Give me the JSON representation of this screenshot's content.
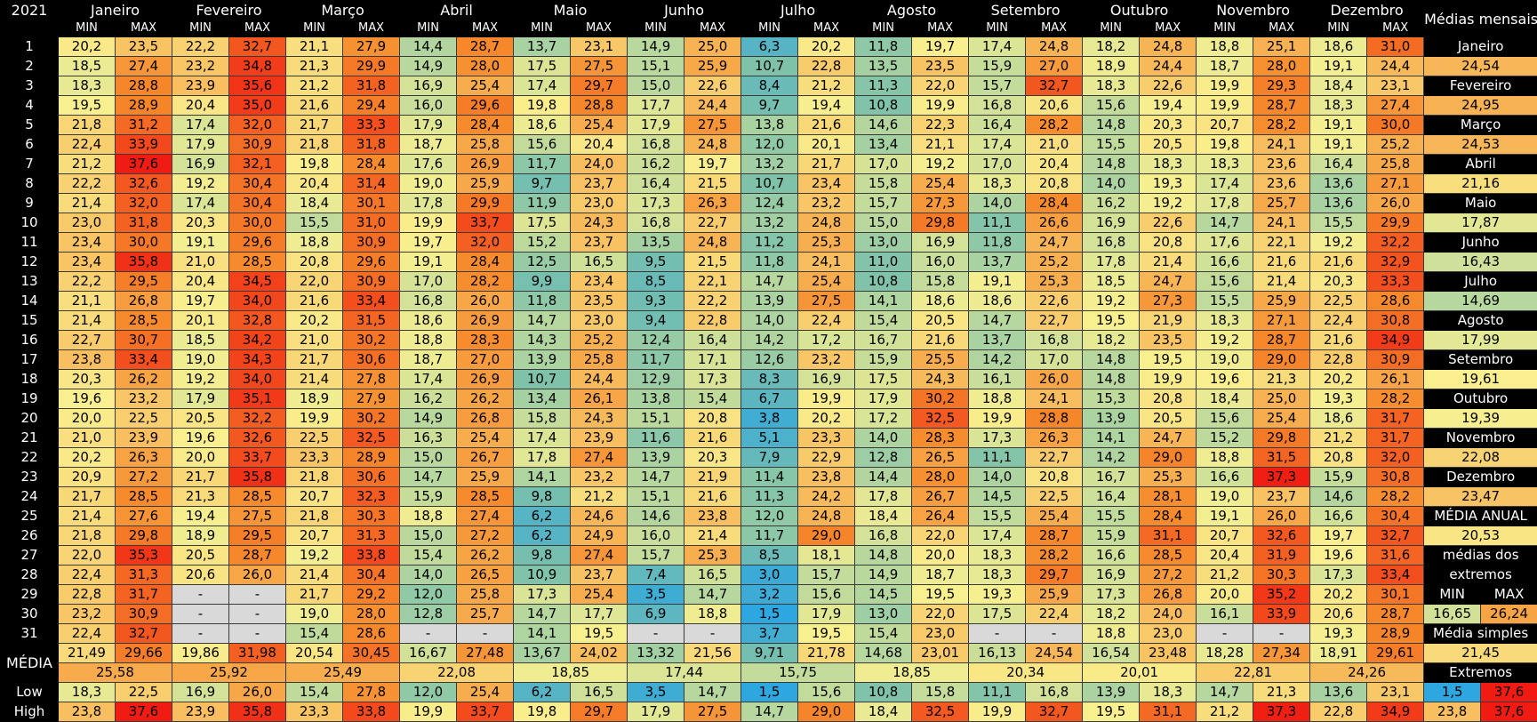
{
  "year": "2021",
  "months": [
    "Janeiro",
    "Fevereiro",
    "Março",
    "Abril",
    "Maio",
    "Junho",
    "Julho",
    "Agosto",
    "Setembro",
    "Outubro",
    "Novembro",
    "Dezembro"
  ],
  "min_label": "MIN",
  "max_label": "MAX",
  "days": [
    [
      20.2,
      23.5,
      22.2,
      32.7,
      21.1,
      27.9,
      14.4,
      28.7,
      13.7,
      23.1,
      14.9,
      25.0,
      6.3,
      20.2,
      11.8,
      19.7,
      17.4,
      24.8,
      18.2,
      24.8,
      18.8,
      25.1,
      18.6,
      31.0
    ],
    [
      18.5,
      27.4,
      23.2,
      34.8,
      21.3,
      29.9,
      14.9,
      28.0,
      17.5,
      27.5,
      15.1,
      25.9,
      10.7,
      22.8,
      13.5,
      23.5,
      15.9,
      27.0,
      18.9,
      24.4,
      18.7,
      28.0,
      19.1,
      24.4
    ],
    [
      18.3,
      28.8,
      23.9,
      35.6,
      21.2,
      31.8,
      16.9,
      25.4,
      17.4,
      29.7,
      15.0,
      22.6,
      8.4,
      21.2,
      11.3,
      22.0,
      15.7,
      32.7,
      18.3,
      22.6,
      19.9,
      29.3,
      18.4,
      23.1
    ],
    [
      19.5,
      28.9,
      20.4,
      35.0,
      21.6,
      29.4,
      16.0,
      29.6,
      19.8,
      28.8,
      17.7,
      24.4,
      9.7,
      19.4,
      10.8,
      19.9,
      16.8,
      20.6,
      15.6,
      19.4,
      19.9,
      28.7,
      18.3,
      27.4
    ],
    [
      21.8,
      31.2,
      17.4,
      32.0,
      21.7,
      33.3,
      17.9,
      28.4,
      18.6,
      25.4,
      17.9,
      27.5,
      13.8,
      21.6,
      14.6,
      22.3,
      16.4,
      28.2,
      14.8,
      20.3,
      20.7,
      28.2,
      19.1,
      30.0
    ],
    [
      22.4,
      33.9,
      17.9,
      30.9,
      21.8,
      31.8,
      18.7,
      25.8,
      15.6,
      20.4,
      16.8,
      24.8,
      12.0,
      20.1,
      13.4,
      21.1,
      17.4,
      21.0,
      15.5,
      20.5,
      19.8,
      24.1,
      19.1,
      25.2
    ],
    [
      21.2,
      37.6,
      16.9,
      32.1,
      19.8,
      28.4,
      17.6,
      26.9,
      11.7,
      24.0,
      16.2,
      19.7,
      13.2,
      21.7,
      17.0,
      19.2,
      17.0,
      20.4,
      14.8,
      18.3,
      18.3,
      23.6,
      16.4,
      25.8
    ],
    [
      22.2,
      32.6,
      19.2,
      30.4,
      20.4,
      31.4,
      19.0,
      25.9,
      9.7,
      23.7,
      16.4,
      21.5,
      10.7,
      23.4,
      15.8,
      25.4,
      18.3,
      20.8,
      14.0,
      19.3,
      17.4,
      23.6,
      13.6,
      27.1
    ],
    [
      21.4,
      32.0,
      17.4,
      30.4,
      18.4,
      30.1,
      17.8,
      29.9,
      11.9,
      23.0,
      17.3,
      26.3,
      12.4,
      23.2,
      15.7,
      27.3,
      14.0,
      28.4,
      16.2,
      19.2,
      17.8,
      25.7,
      13.6,
      26.0
    ],
    [
      23.0,
      31.8,
      20.3,
      30.0,
      15.5,
      31.0,
      19.9,
      33.7,
      17.5,
      24.3,
      16.8,
      22.7,
      13.2,
      24.8,
      15.0,
      29.8,
      11.1,
      26.6,
      16.9,
      22.6,
      14.7,
      24.1,
      15.5,
      29.9
    ],
    [
      23.4,
      30.0,
      19.1,
      29.6,
      18.8,
      30.9,
      19.7,
      32.0,
      15.2,
      23.7,
      13.5,
      24.8,
      11.2,
      25.3,
      13.0,
      16.9,
      11.8,
      24.7,
      16.8,
      20.8,
      17.6,
      22.1,
      19.2,
      32.2
    ],
    [
      23.4,
      35.8,
      21.0,
      28.5,
      20.8,
      29.6,
      19.1,
      28.4,
      12.5,
      16.5,
      9.5,
      21.5,
      11.8,
      24.1,
      11.0,
      16.0,
      13.7,
      25.2,
      17.8,
      21.4,
      16.6,
      21.6,
      21.6,
      32.9
    ],
    [
      22.2,
      29.5,
      20.4,
      34.5,
      22.0,
      30.9,
      17.0,
      28.2,
      9.9,
      23.4,
      8.5,
      22.1,
      14.7,
      25.4,
      10.8,
      15.8,
      19.1,
      25.3,
      18.5,
      24.7,
      15.6,
      21.4,
      20.3,
      33.3
    ],
    [
      21.1,
      26.8,
      19.7,
      34.0,
      21.6,
      33.4,
      16.8,
      26.0,
      11.8,
      23.5,
      9.3,
      22.2,
      13.9,
      27.5,
      14.1,
      18.6,
      18.6,
      22.6,
      19.2,
      27.3,
      15.5,
      25.9,
      22.5,
      28.6
    ],
    [
      21.4,
      28.5,
      20.1,
      32.8,
      20.2,
      31.5,
      18.6,
      26.9,
      14.7,
      23.0,
      9.4,
      22.8,
      14.0,
      22.4,
      15.4,
      20.5,
      14.7,
      22.7,
      19.5,
      21.9,
      18.3,
      27.1,
      22.4,
      30.8
    ],
    [
      22.7,
      30.7,
      18.5,
      34.2,
      21.0,
      30.2,
      18.8,
      28.3,
      14.3,
      25.2,
      12.4,
      16.4,
      14.2,
      17.2,
      16.7,
      21.6,
      13.7,
      16.8,
      18.2,
      23.5,
      19.2,
      28.7,
      21.6,
      34.9
    ],
    [
      23.8,
      33.4,
      19.0,
      34.3,
      21.7,
      30.6,
      18.7,
      27.0,
      13.9,
      25.8,
      11.7,
      17.1,
      12.6,
      23.2,
      15.9,
      25.5,
      14.2,
      17.0,
      14.8,
      19.5,
      19.0,
      29.0,
      22.8,
      30.9
    ],
    [
      20.3,
      26.2,
      19.2,
      34.0,
      21.4,
      27.8,
      17.4,
      26.9,
      10.7,
      24.4,
      12.9,
      17.3,
      8.3,
      16.9,
      17.5,
      24.3,
      16.1,
      26.0,
      14.8,
      19.9,
      19.6,
      21.3,
      20.2,
      26.1
    ],
    [
      19.6,
      23.2,
      17.9,
      35.1,
      18.9,
      27.9,
      16.2,
      26.2,
      13.4,
      26.1,
      13.8,
      15.4,
      6.7,
      19.9,
      17.9,
      30.2,
      18.8,
      24.1,
      15.3,
      20.8,
      18.4,
      25.0,
      19.3,
      28.2
    ],
    [
      20.0,
      22.5,
      20.5,
      32.2,
      19.9,
      30.2,
      14.9,
      26.8,
      15.8,
      24.3,
      15.1,
      20.8,
      3.8,
      20.2,
      17.2,
      32.5,
      19.9,
      28.8,
      13.9,
      20.5,
      15.6,
      25.4,
      18.6,
      31.7
    ],
    [
      21.0,
      23.9,
      19.6,
      32.6,
      22.5,
      32.5,
      16.3,
      25.4,
      17.4,
      23.9,
      11.6,
      21.6,
      5.1,
      23.3,
      14.0,
      28.3,
      17.3,
      26.3,
      14.1,
      24.7,
      15.2,
      29.8,
      21.2,
      31.7
    ],
    [
      20.2,
      26.3,
      20.0,
      33.7,
      23.3,
      28.9,
      15.0,
      26.7,
      17.8,
      27.4,
      13.9,
      20.3,
      7.9,
      22.9,
      12.8,
      26.5,
      11.1,
      22.7,
      14.2,
      29.0,
      18.8,
      31.5,
      20.8,
      32.0
    ],
    [
      20.9,
      27.2,
      21.7,
      35.8,
      21.8,
      30.6,
      14.7,
      25.9,
      14.1,
      23.2,
      14.7,
      21.9,
      11.4,
      23.8,
      14.4,
      28.0,
      14.0,
      20.8,
      16.7,
      25.3,
      16.6,
      37.3,
      15.9,
      30.8
    ],
    [
      21.7,
      28.5,
      21.3,
      28.5,
      20.7,
      32.3,
      15.9,
      28.5,
      9.8,
      21.2,
      15.1,
      21.6,
      11.3,
      24.2,
      17.8,
      26.7,
      14.5,
      22.5,
      16.4,
      28.1,
      19.0,
      23.7,
      14.6,
      28.2
    ],
    [
      21.4,
      27.6,
      19.4,
      27.5,
      21.8,
      30.3,
      18.8,
      27.4,
      6.2,
      24.6,
      14.6,
      23.8,
      12.0,
      24.8,
      18.4,
      26.4,
      15.5,
      25.4,
      15.5,
      28.4,
      19.1,
      26.0,
      16.6,
      30.4
    ],
    [
      21.8,
      29.8,
      18.9,
      29.5,
      20.7,
      31.3,
      15.0,
      27.2,
      6.2,
      24.9,
      16.0,
      21.4,
      11.7,
      29.0,
      16.8,
      22.0,
      17.4,
      28.7,
      15.9,
      31.1,
      20.7,
      32.6,
      19.7,
      32.7
    ],
    [
      22.0,
      35.3,
      20.5,
      28.7,
      19.2,
      33.8,
      15.4,
      26.2,
      9.8,
      27.4,
      15.7,
      25.3,
      8.5,
      18.1,
      14.8,
      20.0,
      18.3,
      28.2,
      16.6,
      28.5,
      20.4,
      31.9,
      19.6,
      31.6
    ],
    [
      22.4,
      31.3,
      20.6,
      26.0,
      21.4,
      30.4,
      14.0,
      26.5,
      10.9,
      23.7,
      7.4,
      16.5,
      3.0,
      15.7,
      14.9,
      18.7,
      18.3,
      29.7,
      16.9,
      27.2,
      21.2,
      30.3,
      17.3,
      33.4
    ],
    [
      22.8,
      31.7,
      null,
      null,
      21.7,
      29.2,
      12.0,
      25.8,
      17.3,
      25.4,
      3.5,
      14.7,
      3.2,
      15.6,
      14.5,
      19.5,
      19.3,
      25.9,
      17.3,
      26.8,
      20.0,
      35.2,
      20.2,
      30.1
    ],
    [
      23.2,
      30.9,
      null,
      null,
      19.0,
      28.0,
      12.8,
      25.7,
      14.7,
      17.7,
      6.9,
      18.8,
      1.5,
      17.9,
      13.0,
      22.0,
      17.5,
      22.4,
      18.2,
      24.0,
      16.1,
      33.9,
      20.6,
      28.7
    ],
    [
      22.4,
      32.7,
      null,
      null,
      15.4,
      28.6,
      null,
      null,
      14.1,
      19.5,
      null,
      null,
      3.7,
      19.5,
      15.4,
      23.0,
      null,
      null,
      18.8,
      23.0,
      null,
      null,
      19.3,
      28.9
    ]
  ],
  "dash": "-",
  "media_label": "MÉDIA",
  "media_vals": [
    "21,49",
    "29,66",
    "19,86",
    "31,98",
    "20,54",
    "30,45",
    "16,67",
    "27,48",
    "13,67",
    "24,02",
    "13,32",
    "21,56",
    "9,71",
    "21,78",
    "14,68",
    "23,01",
    "16,13",
    "24,54",
    "16,54",
    "23,48",
    "18,28",
    "27,34",
    "18,91",
    "29,61"
  ],
  "media_mid": [
    "25,58",
    "25,92",
    "25,49",
    "22,08",
    "18,85",
    "17,44",
    "15,75",
    "18,85",
    "20,34",
    "20,01",
    "22,81",
    "24,26"
  ],
  "low_label": "Low",
  "low_vals": [
    "18,3",
    "22,5",
    "16,9",
    "26,0",
    "15,4",
    "27,8",
    "12,0",
    "25,4",
    "6,2",
    "16,5",
    "3,5",
    "14,7",
    "1,5",
    "15,6",
    "10,8",
    "15,8",
    "11,1",
    "16,8",
    "13,9",
    "18,3",
    "14,7",
    "21,3",
    "13,6",
    "23,1"
  ],
  "high_label": "High",
  "high_vals": [
    "23,8",
    "37,6",
    "23,9",
    "35,8",
    "23,3",
    "33,8",
    "19,9",
    "33,7",
    "19,8",
    "29,7",
    "17,9",
    "27,5",
    "14,7",
    "29,0",
    "18,4",
    "32,5",
    "19,9",
    "32,7",
    "19,5",
    "31,1",
    "21,2",
    "37,3",
    "22,8",
    "34,9"
  ],
  "side": {
    "title": "Médias mensais",
    "monthly": [
      {
        "name": "Janeiro",
        "value": "24,54"
      },
      {
        "name": "Fevereiro",
        "value": "24,95"
      },
      {
        "name": "Março",
        "value": "24,53"
      },
      {
        "name": "Abril",
        "value": "21,16"
      },
      {
        "name": "Maio",
        "value": "17,87"
      },
      {
        "name": "Junho",
        "value": "16,43"
      },
      {
        "name": "Julho",
        "value": "14,69"
      },
      {
        "name": "Agosto",
        "value": "17,99"
      },
      {
        "name": "Setembro",
        "value": "19,61"
      },
      {
        "name": "Outubro",
        "value": "19,39"
      },
      {
        "name": "Novembro",
        "value": "22,08"
      },
      {
        "name": "Dezembro",
        "value": "23,47"
      }
    ],
    "annual_label": "MÉDIA ANUAL",
    "annual_value": "20,53",
    "extremes_line1": "médias dos",
    "extremes_line2": "extremos",
    "min_label": "MIN",
    "max_label": "MAX",
    "min_avg": "16,65",
    "max_avg": "26,24",
    "simple_label": "Média simples",
    "simple_value": "21,45",
    "extremos_label": "Extremos",
    "ext_min": "1,5",
    "ext_max": "37,6"
  }
}
